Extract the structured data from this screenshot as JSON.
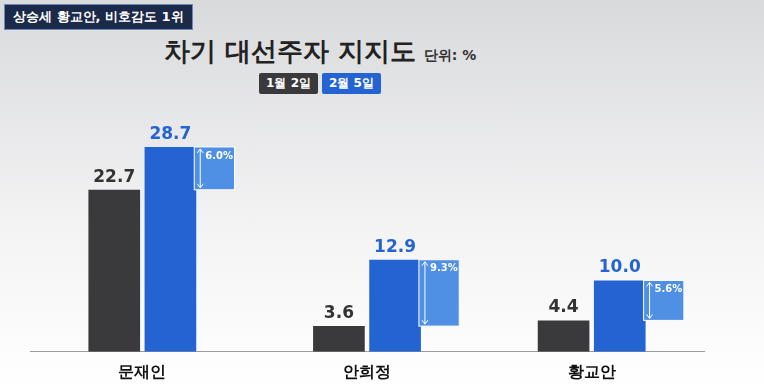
{
  "header": {
    "tag": "상승세 황교안, 비호감도 1위"
  },
  "chart_data": {
    "type": "bar",
    "title": "차기 대선주자 지지도",
    "unit_label": "단위: %",
    "categories": [
      "문재인",
      "안희정",
      "황교안"
    ],
    "series": [
      {
        "name": "1월 2일",
        "color": "#3a3a3c",
        "values": [
          22.7,
          3.6,
          4.4
        ]
      },
      {
        "name": "2월 5일",
        "color": "#2364d2",
        "values": [
          28.7,
          12.9,
          10.0
        ],
        "value_labels": [
          "28.7",
          "12.9",
          "10.0"
        ]
      }
    ],
    "change_values": [
      6.0,
      9.3,
      5.6
    ],
    "change_labels": [
      "6.0%",
      "9.3%",
      "5.6%"
    ],
    "ylim": [
      0,
      35
    ],
    "grid": false,
    "legend": "top",
    "data_labels": true,
    "tick_labels": "x"
  }
}
